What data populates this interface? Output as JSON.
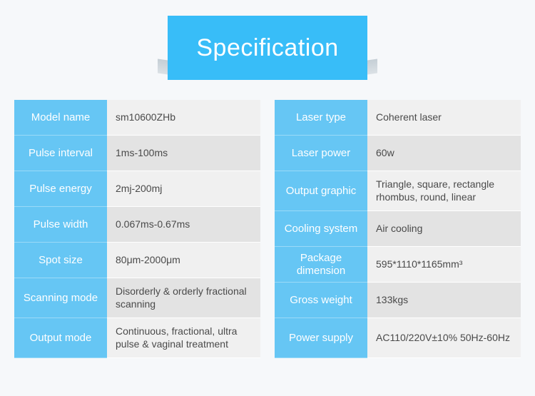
{
  "header": {
    "title": "Specification"
  },
  "colors": {
    "banner": "#38bdf8",
    "label_bg": "#66c6f4",
    "label_text": "#ffffff",
    "value_bg": "#f0f0f0",
    "value_bg_alt": "#e3e3e3",
    "value_text": "#4a4a4a",
    "page_bg": "#f6f8fa"
  },
  "left": [
    {
      "label": "Model name",
      "value": "sm10600ZHb"
    },
    {
      "label": "Pulse interval",
      "value": "1ms-100ms"
    },
    {
      "label": "Pulse energy",
      "value": "2mj-200mj"
    },
    {
      "label": "Pulse width",
      "value": "0.067ms-0.67ms"
    },
    {
      "label": "Spot size",
      "value": "80μm-2000μm"
    },
    {
      "label": "Scanning mode",
      "value": "Disorderly & orderly fractional scanning"
    },
    {
      "label": "Output mode",
      "value": "Continuous, fractional, ultra pulse & vaginal treatment"
    }
  ],
  "right": [
    {
      "label": "Laser type",
      "value": "Coherent laser"
    },
    {
      "label": "Laser power",
      "value": "60w"
    },
    {
      "label": "Output graphic",
      "value": "Triangle, square, rectangle rhombus, round, linear"
    },
    {
      "label": "Cooling system",
      "value": "Air cooling"
    },
    {
      "label": "Package dimension",
      "value": "595*1110*1165mm³"
    },
    {
      "label": "Gross weight",
      "value": "133kgs"
    },
    {
      "label": "Power supply",
      "value": "AC110/220V±10% 50Hz-60Hz"
    }
  ]
}
